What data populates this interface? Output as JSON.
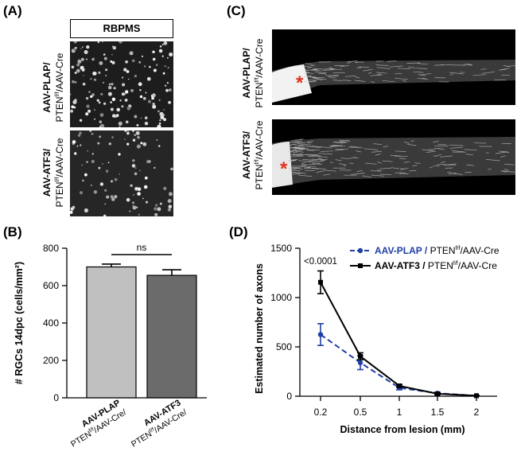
{
  "panels": {
    "a": {
      "label": "(A)",
      "stain": "RBPMS",
      "rows": [
        {
          "bold": "AAV-PLAP/",
          "pten": "PTEN",
          "sup": "f/f",
          "rest": "/AAV-Cre"
        },
        {
          "bold": "AAV-ATF3/",
          "pten": "PTEN",
          "sup": "f/f",
          "rest": "/AAV-Cre"
        }
      ]
    },
    "b": {
      "label": "(B)"
    },
    "c": {
      "label": "(C)",
      "lesion_marker": "*",
      "rows": [
        {
          "bold": "AAV-PLAP/",
          "pten": "PTEN",
          "sup": "f/f",
          "rest": "/AAV-Cre"
        },
        {
          "bold": "AAV-ATF3/",
          "pten": "PTEN",
          "sup": "f/f",
          "rest": "/AAV-Cre"
        }
      ]
    },
    "d": {
      "label": "(D)"
    }
  },
  "chart_data": [
    {
      "type": "bar",
      "ylabel": "# RGCs 14dpc (cells/mm²)",
      "ylim": [
        0,
        800
      ],
      "yticks": [
        "0",
        "200",
        "400",
        "600",
        "800"
      ],
      "categories": [
        {
          "bold": "AAV-PLAP",
          "sub": "PTEN",
          "sup": "f/f",
          "rest": "/AAV-Cre/"
        },
        {
          "bold": "AAV-ATF3",
          "sub": "PTEN",
          "sup": "f/f",
          "rest": "/AAV-Cre/"
        }
      ],
      "values": [
        700,
        655
      ],
      "errors": [
        15,
        30
      ],
      "colors": [
        "#c0c0c0",
        "#6b6b6b"
      ],
      "significance": "ns"
    },
    {
      "type": "line",
      "xlabel": "Distance from lesion (mm)",
      "ylabel": "Estimated number of axons",
      "x": [
        "0.2",
        "0.5",
        "1",
        "1.5",
        "2"
      ],
      "ylim": [
        0,
        1500
      ],
      "yticks": [
        "0",
        "500",
        "1000",
        "1500"
      ],
      "annotation": "<0.0001",
      "series": [
        {
          "name_bold": "AAV-PLAP / ",
          "name_pten": "PTEN",
          "sup": "f/f",
          "name_rest": "/AAV-Cre",
          "values": [
            625,
            340,
            85,
            30,
            5
          ],
          "errors": [
            110,
            70,
            20,
            10,
            5
          ],
          "color": "#1f3fa5",
          "dash": true,
          "marker": "circle"
        },
        {
          "name_bold": "AAV-ATF3 / ",
          "name_pten": "PTEN",
          "sup": "f/f",
          "name_rest": "/AAV-Cre",
          "values": [
            1155,
            405,
            105,
            25,
            5
          ],
          "errors": [
            115,
            35,
            15,
            10,
            3
          ],
          "color": "#000000",
          "dash": false,
          "marker": "square"
        }
      ]
    }
  ]
}
